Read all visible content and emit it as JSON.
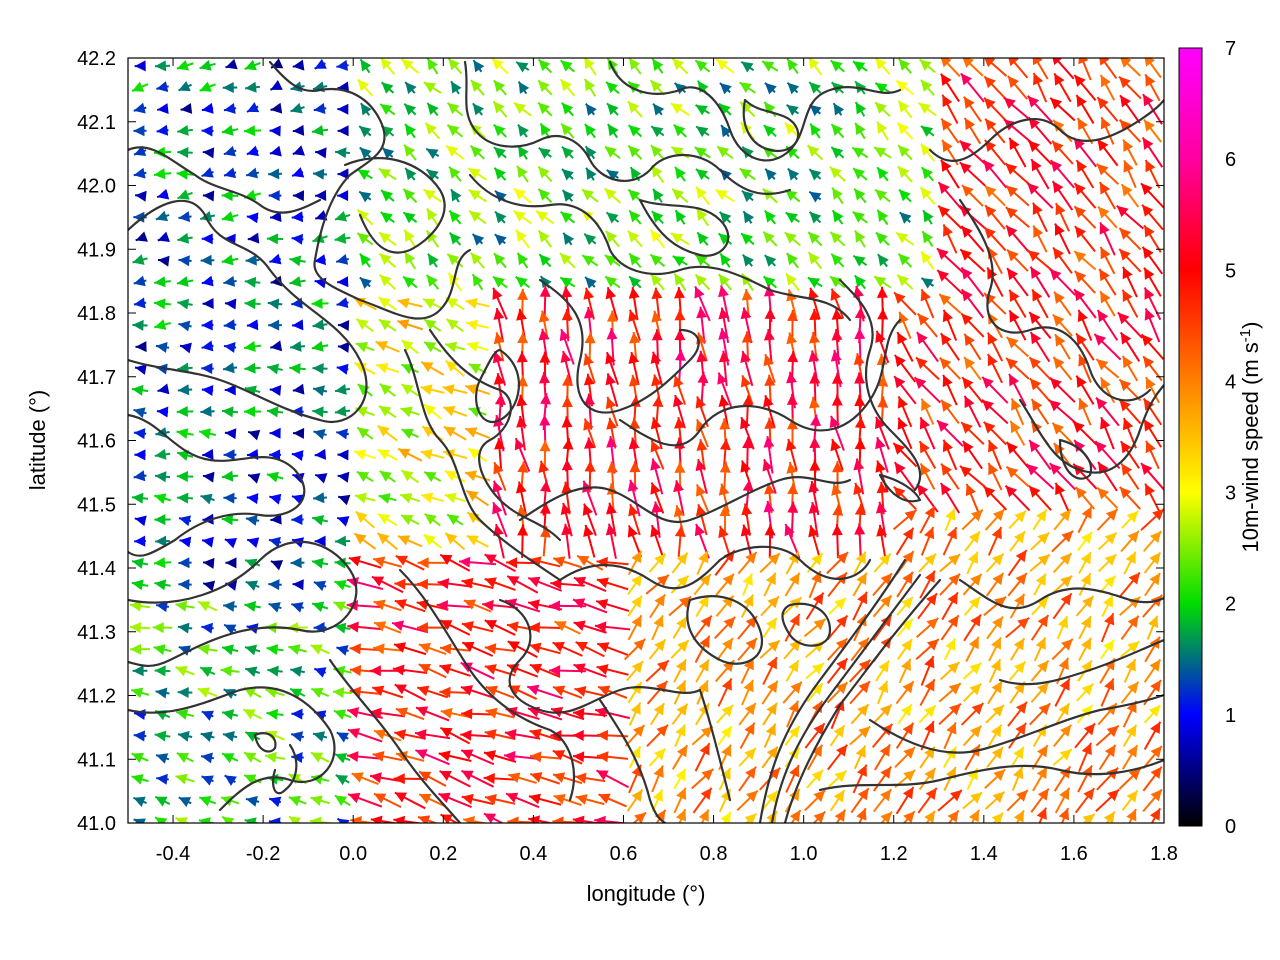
{
  "chart_data": {
    "type": "vector-field",
    "xlabel": "longitude (°)",
    "ylabel": "latitude (°)",
    "xlim": [
      -0.5,
      1.8
    ],
    "ylim": [
      41.0,
      42.2
    ],
    "x_ticks": [
      "-0.4",
      "-0.2",
      "0.0",
      "0.2",
      "0.4",
      "0.6",
      "0.8",
      "1.0",
      "1.2",
      "1.4",
      "1.6",
      "1.8"
    ],
    "y_ticks": [
      "41.0",
      "41.1",
      "41.2",
      "41.3",
      "41.4",
      "41.5",
      "41.6",
      "41.7",
      "41.8",
      "41.9",
      "42.0",
      "42.1",
      "42.2"
    ],
    "colorbar": {
      "label": "10m-wind speed (m s",
      "label_sup": "-1",
      "label_end": ")",
      "range": [
        0,
        7
      ],
      "ticks": [
        "0",
        "1",
        "2",
        "3",
        "4",
        "5",
        "6",
        "7"
      ],
      "colors": [
        "#000000",
        "#0000ff",
        "#00dd00",
        "#ffff00",
        "#ff8000",
        "#ff0000",
        "#ff00ff"
      ]
    },
    "wind_regions": [
      {
        "name": "west",
        "lon": [
          -0.5,
          0.0
        ],
        "lat": [
          41.0,
          42.2
        ],
        "speed_m_s": 1.5,
        "direction": "toward west"
      },
      {
        "name": "north",
        "lon": [
          0.0,
          1.3
        ],
        "lat": [
          41.8,
          42.2
        ],
        "speed_m_s": 2.3,
        "direction": "toward northwest"
      },
      {
        "name": "central",
        "lon": [
          0.3,
          1.2
        ],
        "lat": [
          41.4,
          41.8
        ],
        "speed_m_s": 5.2,
        "direction": "toward north"
      },
      {
        "name": "southwest",
        "lon": [
          0.0,
          0.6
        ],
        "lat": [
          41.0,
          41.4
        ],
        "speed_m_s": 5.0,
        "direction": "toward west-northwest"
      },
      {
        "name": "southeast",
        "lon": [
          0.6,
          1.8
        ],
        "lat": [
          41.0,
          41.5
        ],
        "speed_m_s": 4.0,
        "direction": "toward northeast"
      },
      {
        "name": "east",
        "lon": [
          1.2,
          1.8
        ],
        "lat": [
          41.5,
          42.0
        ],
        "speed_m_s": 4.8,
        "direction": "toward northwest"
      }
    ]
  }
}
